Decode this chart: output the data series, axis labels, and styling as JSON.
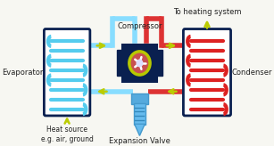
{
  "bg_color": "#f7f7f2",
  "evaporator_label": "Evaporator",
  "condenser_label": "Condenser",
  "compressor_label": "Compressor",
  "expansion_label": "Expansion Valve",
  "heat_source_label": "Heat source\ne.g. air, ground",
  "heating_system_label": "To heating system",
  "evap_color": "#55ccee",
  "evap_border": "#0a2050",
  "cond_color": "#dd2222",
  "cond_border": "#0a2050",
  "pipe_blue": "#88ddff",
  "pipe_red": "#dd3333",
  "pipe_dark": "#0a2050",
  "arrow_color": "#bbcc00",
  "font_color": "#222222",
  "lw_pipe": 4.0,
  "lw_border": 2.0
}
